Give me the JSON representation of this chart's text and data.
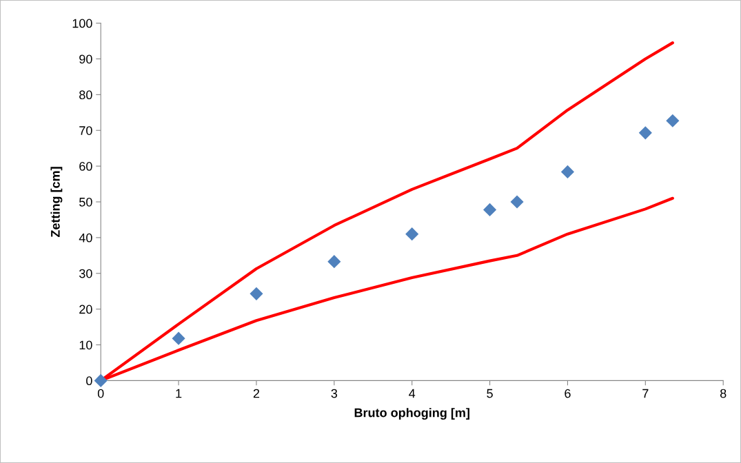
{
  "chart_data": {
    "type": "scatter",
    "xlabel": "Bruto ophoging [m]",
    "ylabel": "Zetting [cm]",
    "xlim": [
      0,
      8
    ],
    "xticks": [
      0,
      1,
      2,
      3,
      4,
      5,
      6,
      7,
      8
    ],
    "ylim": [
      0,
      100
    ],
    "yticks": [
      0,
      10,
      20,
      30,
      40,
      50,
      60,
      70,
      80,
      90,
      100
    ],
    "grid": false,
    "legend": false,
    "series": [
      {
        "type": "line",
        "color": "#ff0000",
        "marker": "none",
        "line_style": "solid",
        "x": [
          0,
          1,
          2,
          3,
          4,
          5,
          5.35,
          6,
          7,
          7.35
        ],
        "values": [
          0,
          15.8,
          31.3,
          43.4,
          53.5,
          62,
          65,
          75.7,
          90,
          94.5
        ]
      },
      {
        "type": "line",
        "color": "#ff0000",
        "marker": "none",
        "line_style": "solid",
        "x": [
          0,
          1,
          2,
          3,
          4,
          5,
          5.35,
          6,
          7,
          7.35
        ],
        "values": [
          0,
          8.5,
          16.8,
          23.2,
          28.8,
          33.5,
          35,
          41,
          48,
          51
        ]
      },
      {
        "color": "#4f81bd",
        "marker": "diamond",
        "x": [
          0,
          1,
          2,
          3,
          4,
          5,
          5.35,
          6,
          7,
          7.35
        ],
        "values": [
          0,
          11.8,
          24.3,
          33.3,
          41,
          47.8,
          50,
          58.4,
          69.3,
          72.7
        ]
      }
    ]
  }
}
